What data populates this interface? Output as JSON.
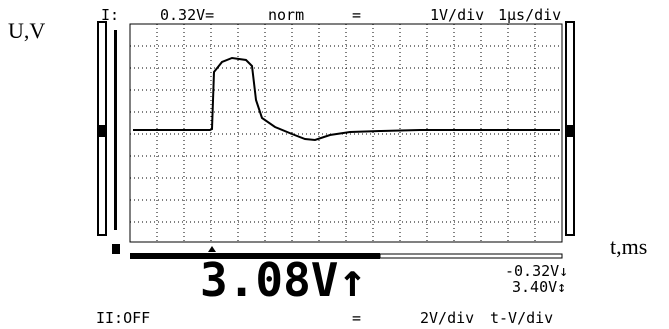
{
  "axis_labels": {
    "y": "U,V",
    "x": "t,ms"
  },
  "top_bar": {
    "channel": "I:",
    "offset": "0.32V=",
    "mode": "norm",
    "separator": "=",
    "volts_per_div": "1V/div",
    "time_per_div": "1μs/div"
  },
  "readout": {
    "main": "3.08V↑",
    "low": "-0.32V↓",
    "range": "3.40V↕"
  },
  "bottom_bar": {
    "channel2": "II:OFF",
    "separator": "=",
    "volts_per_div": "2V/div",
    "mode": "t-V/div"
  }
}
